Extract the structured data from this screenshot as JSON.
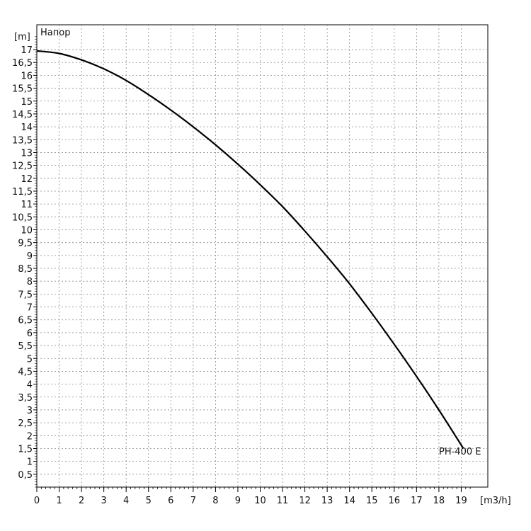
{
  "chart_data": {
    "type": "line",
    "title": "",
    "xlabel": "[m3/h]",
    "ylabel": "[m]",
    "xlim": [
      0,
      19.5
    ],
    "ylim": [
      0,
      17.5
    ],
    "grid": true,
    "x_ticks": [
      0,
      1,
      2,
      3,
      4,
      5,
      6,
      7,
      8,
      9,
      10,
      11,
      12,
      13,
      14,
      15,
      16,
      17,
      18,
      19
    ],
    "x_tick_labels": [
      "0",
      "1",
      "2",
      "3",
      "4",
      "5",
      "6",
      "7",
      "8",
      "9",
      "10",
      "11",
      "12",
      "13",
      "14",
      "15",
      "16",
      "17",
      "18",
      "19"
    ],
    "y_ticks": [
      0.5,
      1,
      1.5,
      2,
      2.5,
      3,
      3.5,
      4,
      4.5,
      5,
      5.5,
      6,
      6.5,
      7,
      7.5,
      8,
      8.5,
      9,
      9.5,
      10,
      10.5,
      11,
      11.5,
      12,
      12.5,
      13,
      13.5,
      14,
      14.5,
      15,
      15.5,
      16,
      16.5,
      17
    ],
    "y_tick_labels": [
      "0,5",
      "1",
      "1,5",
      "2",
      "2,5",
      "3",
      "3,5",
      "4",
      "4,5",
      "5",
      "5,5",
      "6",
      "6,5",
      "7",
      "7,5",
      "8",
      "8,5",
      "9",
      "9,5",
      "10",
      "10,5",
      "11",
      "11,5",
      "12",
      "12,5",
      "13",
      "13,5",
      "14",
      "14,5",
      "15",
      "15,5",
      "16",
      "16,5",
      "17"
    ],
    "y_header_label": "Напор",
    "series": [
      {
        "name": "PH-400 E",
        "x": [
          0,
          1,
          2,
          3,
          4,
          5,
          6,
          7,
          8,
          9,
          10,
          11,
          12,
          13,
          14,
          15,
          16,
          17,
          18,
          19.1
        ],
        "y": [
          16.95,
          16.85,
          16.6,
          16.25,
          15.8,
          15.25,
          14.65,
          14.0,
          13.3,
          12.55,
          11.75,
          10.9,
          9.95,
          8.95,
          7.9,
          6.75,
          5.55,
          4.3,
          3.0,
          1.5
        ],
        "color": "#000000"
      }
    ]
  }
}
